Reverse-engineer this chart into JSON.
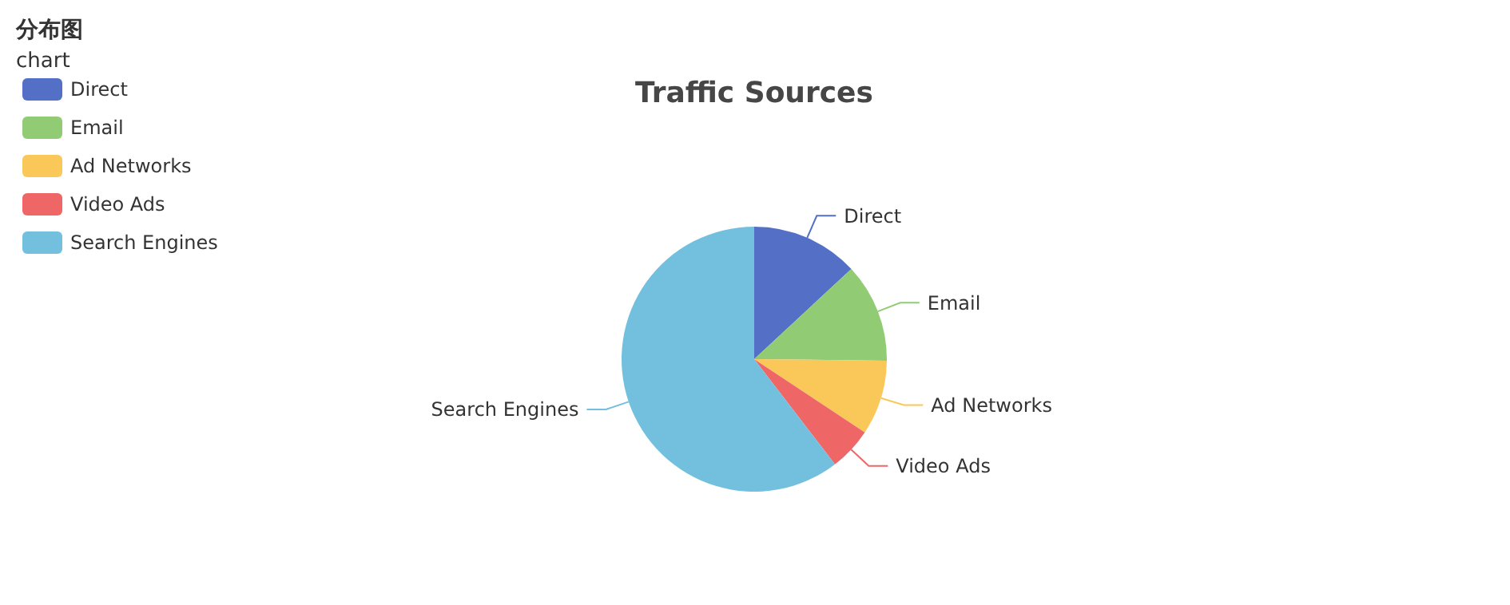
{
  "chart_data": {
    "type": "pie",
    "title": "Traffic Sources",
    "annotations": [
      "分布图",
      "chart"
    ],
    "categories": [
      "Direct",
      "Email",
      "Ad Networks",
      "Video Ads",
      "Search Engines"
    ],
    "values": [
      13.08,
      12.1,
      9.13,
      5.27,
      60.42
    ],
    "colors": [
      "#5470c6",
      "#91cc75",
      "#fac858",
      "#ee6666",
      "#73c0de"
    ],
    "legend": "top left"
  }
}
